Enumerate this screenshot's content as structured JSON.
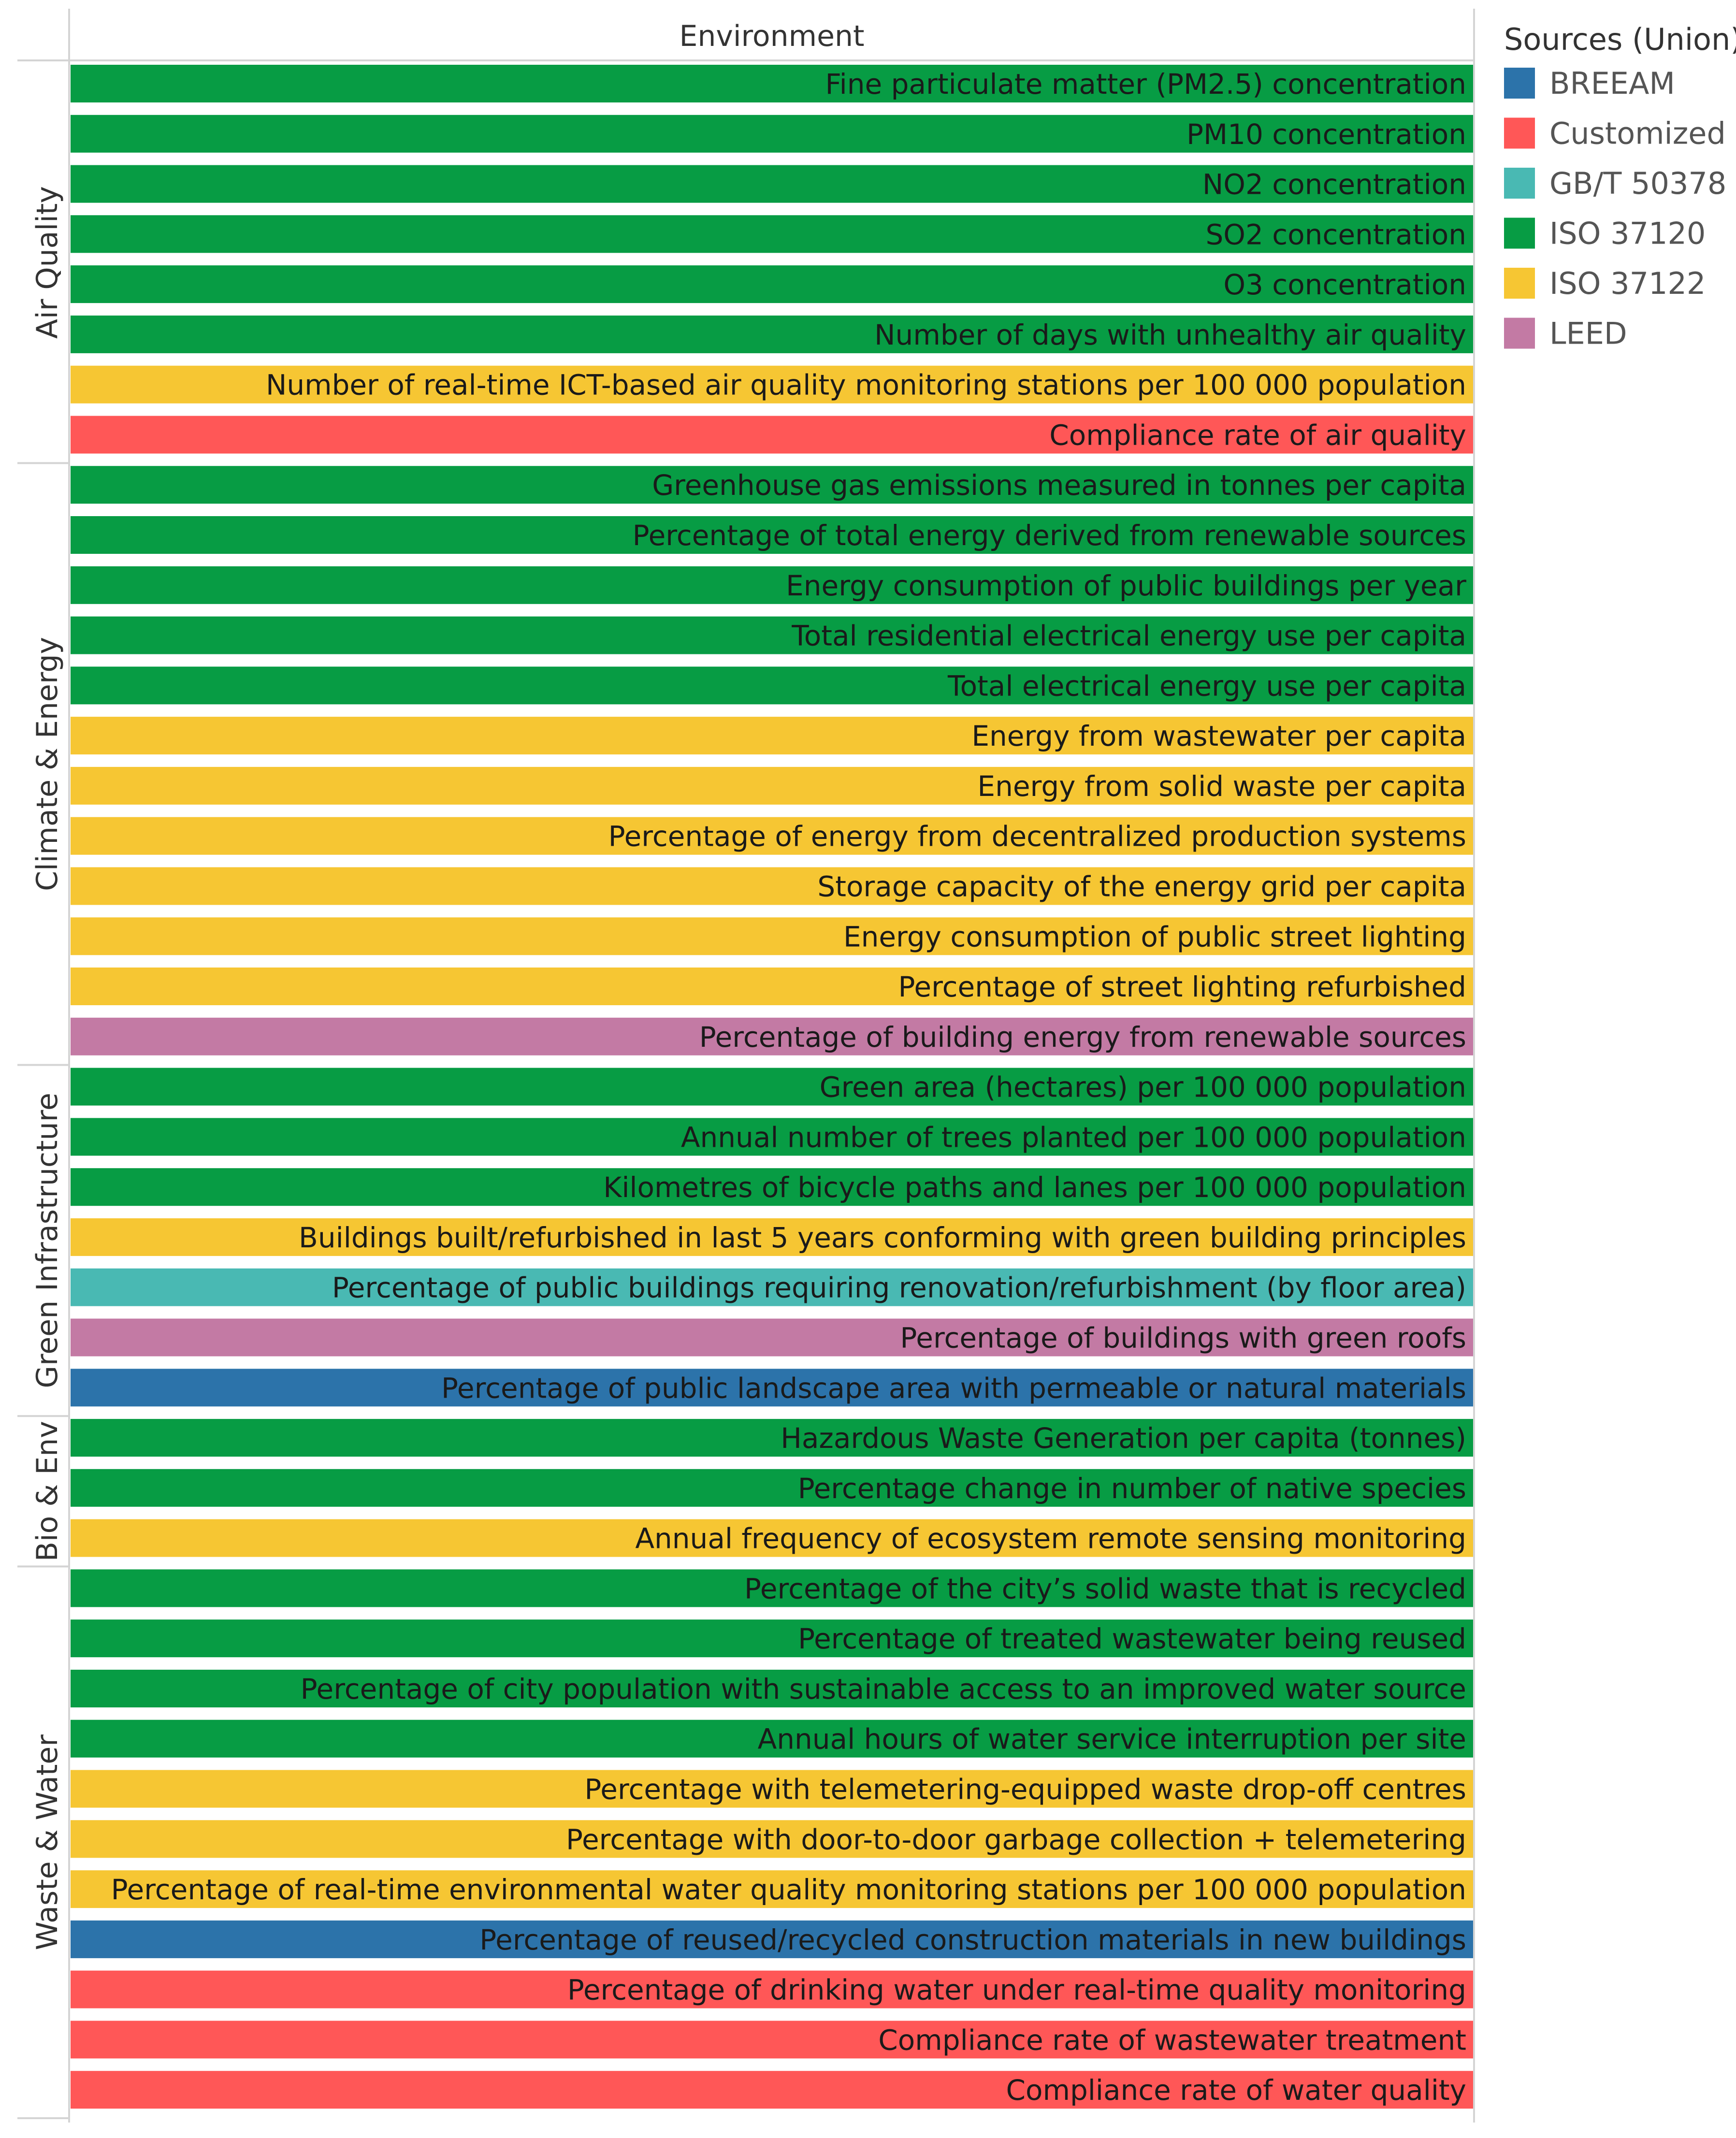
{
  "chart_data": {
    "type": "bar",
    "orientation": "horizontal",
    "column_header": "Environment",
    "legend": {
      "title": "Sources (Union)",
      "items": [
        {
          "name": "BREEAM",
          "color": "#2c73aa"
        },
        {
          "name": "Customized",
          "color": "#ff5757"
        },
        {
          "name": "GB/T 50378",
          "color": "#49b9b3"
        },
        {
          "name": "ISO 37120",
          "color": "#079c44"
        },
        {
          "name": "ISO 37122",
          "color": "#f6c633"
        },
        {
          "name": "LEED",
          "color": "#c37aa4"
        }
      ]
    },
    "groups": [
      {
        "name": "Air Quality",
        "rows": [
          {
            "label": "Fine particulate matter (PM2.5) concentration",
            "source": "ISO 37120"
          },
          {
            "label": "PM10 concentration",
            "source": "ISO 37120"
          },
          {
            "label": "NO2 concentration",
            "source": "ISO 37120"
          },
          {
            "label": "SO2 concentration",
            "source": "ISO 37120"
          },
          {
            "label": "O3 concentration",
            "source": "ISO 37120"
          },
          {
            "label": "Number of days with unhealthy air quality",
            "source": "ISO 37120"
          },
          {
            "label": "Number of real-time ICT-based air quality monitoring stations per 100 000 population",
            "source": "ISO 37122"
          },
          {
            "label": "Compliance rate of air quality",
            "source": "Customized"
          }
        ]
      },
      {
        "name": "Climate & Energy",
        "rows": [
          {
            "label": "Greenhouse gas emissions measured in tonnes per capita",
            "source": "ISO 37120"
          },
          {
            "label": "Percentage of total energy derived from renewable sources",
            "source": "ISO 37120"
          },
          {
            "label": "Energy consumption of public buildings per year",
            "source": "ISO 37120"
          },
          {
            "label": "Total residential electrical energy use per capita",
            "source": "ISO 37120"
          },
          {
            "label": "Total electrical energy use per capita",
            "source": "ISO 37120"
          },
          {
            "label": "Energy from wastewater per capita",
            "source": "ISO 37122"
          },
          {
            "label": "Energy from solid waste per capita",
            "source": "ISO 37122"
          },
          {
            "label": "Percentage of energy from decentralized production systems",
            "source": "ISO 37122"
          },
          {
            "label": "Storage capacity of the energy grid per capita",
            "source": "ISO 37122"
          },
          {
            "label": "Energy consumption of public street lighting",
            "source": "ISO 37122"
          },
          {
            "label": "Percentage of street lighting refurbished",
            "source": "ISO 37122"
          },
          {
            "label": "Percentage of building energy from renewable sources",
            "source": "LEED"
          }
        ]
      },
      {
        "name": "Green Infrastructure",
        "rows": [
          {
            "label": "Green area (hectares) per 100 000 population",
            "source": "ISO 37120"
          },
          {
            "label": "Annual number of trees planted per 100 000 population",
            "source": "ISO 37120"
          },
          {
            "label": "Kilometres of bicycle paths and lanes per 100 000 population",
            "source": "ISO 37120"
          },
          {
            "label": "Buildings built/refurbished in last 5 years conforming with green building principles",
            "source": "ISO 37122"
          },
          {
            "label": "Percentage of public buildings requiring renovation/refurbishment (by floor area)",
            "source": "GB/T 50378"
          },
          {
            "label": "Percentage of buildings with green roofs",
            "source": "LEED"
          },
          {
            "label": "Percentage of public landscape area with permeable or natural materials",
            "source": "BREEAM"
          }
        ]
      },
      {
        "name": "Bio & Env",
        "rows": [
          {
            "label": "Hazardous Waste Generation per capita (tonnes)",
            "source": "ISO 37120"
          },
          {
            "label": "Percentage change in number of native species",
            "source": "ISO 37120"
          },
          {
            "label": "Annual frequency of ecosystem remote sensing monitoring",
            "source": "ISO 37122"
          }
        ]
      },
      {
        "name": "Waste & Water",
        "rows": [
          {
            "label": "Percentage of the city’s solid waste that is recycled",
            "source": "ISO 37120"
          },
          {
            "label": "Percentage of treated wastewater being reused",
            "source": "ISO 37120"
          },
          {
            "label": "Percentage of city population with sustainable access to an improved water source",
            "source": "ISO 37120"
          },
          {
            "label": "Annual hours of water service interruption per site",
            "source": "ISO 37120"
          },
          {
            "label": "Percentage with telemetering-equipped waste drop-off centres",
            "source": "ISO 37122"
          },
          {
            "label": "Percentage with door-to-door garbage collection + telemetering",
            "source": "ISO 37122"
          },
          {
            "label": "Percentage of real-time environmental water quality monitoring stations per 100 000 population",
            "source": "ISO 37122"
          },
          {
            "label": "Percentage of reused/recycled construction materials in new buildings",
            "source": "BREEAM"
          },
          {
            "label": "Percentage of drinking water under real-time quality monitoring",
            "source": "Customized"
          },
          {
            "label": "Compliance rate of wastewater treatment",
            "source": "Customized"
          },
          {
            "label": "Compliance rate of water quality",
            "source": "Customized"
          }
        ]
      }
    ]
  }
}
